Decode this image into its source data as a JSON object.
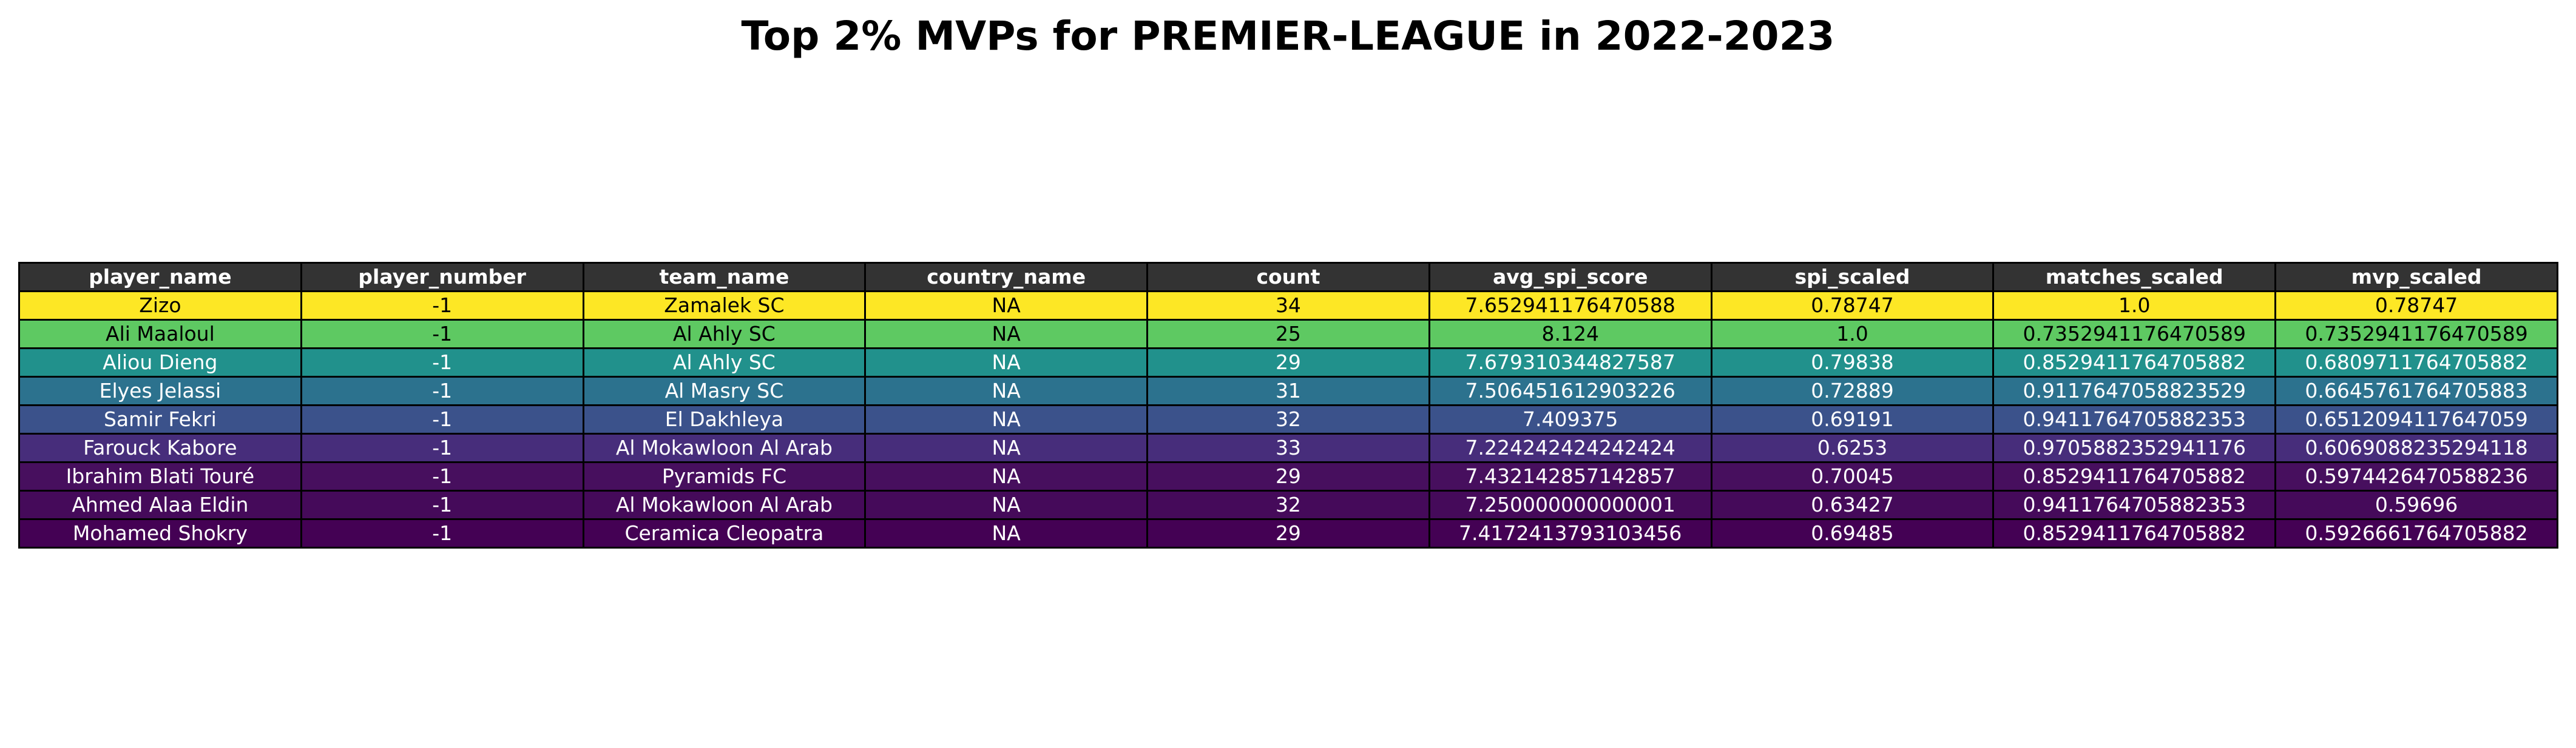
{
  "chart_data": {
    "type": "table",
    "title": "Top 2% MVPs for PREMIER-LEAGUE in 2022-2023",
    "header_color": "#333333",
    "columns": [
      "player_name",
      "player_number",
      "team_name",
      "country_name",
      "count",
      "avg_spi_score",
      "spi_scaled",
      "matches_scaled",
      "mvp_scaled"
    ],
    "rows": [
      {
        "cells": [
          "Zizo",
          "-1",
          "Zamalek SC",
          "NA",
          "34",
          "7.652941176470588",
          "0.78747",
          "1.0",
          "0.78747"
        ],
        "color": "#fde725",
        "text_color": "#000000"
      },
      {
        "cells": [
          "Ali Maaloul",
          "-1",
          "Al Ahly SC",
          "NA",
          "25",
          "8.124",
          "1.0",
          "0.7352941176470589",
          "0.7352941176470589"
        ],
        "color": "#5ec962",
        "text_color": "#000000"
      },
      {
        "cells": [
          "Aliou Dieng",
          "-1",
          "Al Ahly SC",
          "NA",
          "29",
          "7.679310344827587",
          "0.79838",
          "0.8529411764705882",
          "0.6809711764705882"
        ],
        "color": "#21918c",
        "text_color": "#ffffff"
      },
      {
        "cells": [
          "Elyes Jelassi",
          "-1",
          "Al Masry SC",
          "NA",
          "31",
          "7.506451612903226",
          "0.72889",
          "0.9117647058823529",
          "0.6645761764705883"
        ],
        "color": "#2c728e",
        "text_color": "#ffffff"
      },
      {
        "cells": [
          "Samir Fekri",
          "-1",
          "El Dakhleya",
          "NA",
          "32",
          "7.409375",
          "0.69191",
          "0.9411764705882353",
          "0.6512094117647059"
        ],
        "color": "#3b528b",
        "text_color": "#ffffff"
      },
      {
        "cells": [
          "Farouck Kabore",
          "-1",
          "Al Mokawloon Al Arab",
          "NA",
          "33",
          "7.224242424242424",
          "0.6253",
          "0.9705882352941176",
          "0.6069088235294118"
        ],
        "color": "#472d7b",
        "text_color": "#ffffff"
      },
      {
        "cells": [
          "Ibrahim Blati Touré",
          "-1",
          "Pyramids FC",
          "NA",
          "29",
          "7.432142857142857",
          "0.70045",
          "0.8529411764705882",
          "0.5974426470588236"
        ],
        "color": "#470f5e",
        "text_color": "#ffffff"
      },
      {
        "cells": [
          "Ahmed Alaa Eldin",
          "-1",
          "Al Mokawloon Al Arab",
          "NA",
          "32",
          "7.250000000000001",
          "0.63427",
          "0.9411764705882353",
          "0.59696"
        ],
        "color": "#450a5a",
        "text_color": "#ffffff"
      },
      {
        "cells": [
          "Mohamed Shokry",
          "-1",
          "Ceramica Cleopatra",
          "NA",
          "29",
          "7.4172413793103456",
          "0.69485",
          "0.8529411764705882",
          "0.5926661764705882"
        ],
        "color": "#440154",
        "text_color": "#ffffff"
      }
    ]
  }
}
